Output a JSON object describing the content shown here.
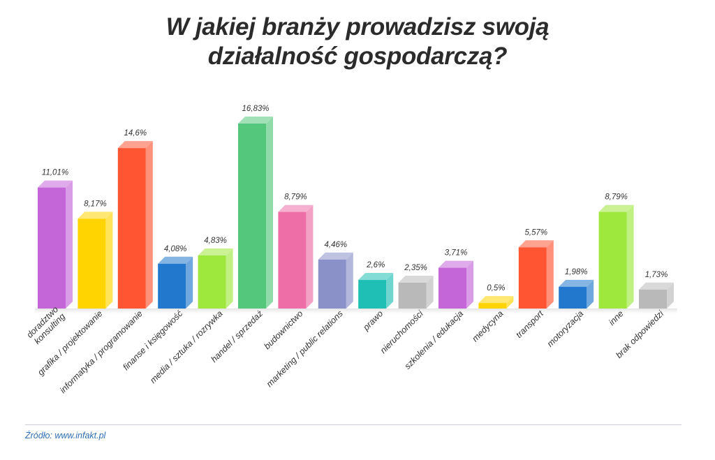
{
  "title_line1": "W jakiej branży prowadzisz swoją",
  "title_line2": "działalność gospodarczą?",
  "source": "Źródło: www.infakt.pl",
  "chart_data": {
    "type": "bar",
    "title": "W jakiej branży prowadzisz swoją działalność gospodarczą?",
    "categories": [
      [
        "doradztwo",
        "konsulting"
      ],
      [
        "grafika / projektowanie"
      ],
      [
        "informatyka / programowanie"
      ],
      [
        "finanse i księgowość"
      ],
      [
        "media / sztuka / rozrywka"
      ],
      [
        "handel / sprzedaż"
      ],
      [
        "budownictwo"
      ],
      [
        "marketing / public relations"
      ],
      [
        "prawo"
      ],
      [
        "nieruchomości"
      ],
      [
        "szkolenia / edukacja"
      ],
      [
        "medycyna"
      ],
      [
        "transport"
      ],
      [
        "motoryzacja"
      ],
      [
        "inne"
      ],
      [
        "brak odpowiedzi"
      ]
    ],
    "values": [
      11.01,
      8.17,
      14.6,
      4.08,
      4.83,
      16.83,
      8.79,
      4.46,
      2.6,
      2.35,
      3.71,
      0.5,
      5.57,
      1.98,
      8.79,
      1.73
    ],
    "value_labels": [
      "11,01%",
      "8,17%",
      "14,6%",
      "4,08%",
      "4,83%",
      "16,83%",
      "8,79%",
      "4,46%",
      "2,6%",
      "2,35%",
      "3,71%",
      "0,5%",
      "5,57%",
      "1,98%",
      "8,79%",
      "1,73%"
    ],
    "colors": [
      "#c466d8",
      "#ffd400",
      "#ff5533",
      "#2178cc",
      "#9ee83e",
      "#55c77d",
      "#ee6fa8",
      "#8a90c8",
      "#20bfb5",
      "#b9b9b9",
      "#c466d8",
      "#ffd400",
      "#ff5533",
      "#2178cc",
      "#9ee83e",
      "#b9b9b9"
    ],
    "ylim": [
      0,
      16.83
    ],
    "grid": false,
    "legend": "none"
  }
}
